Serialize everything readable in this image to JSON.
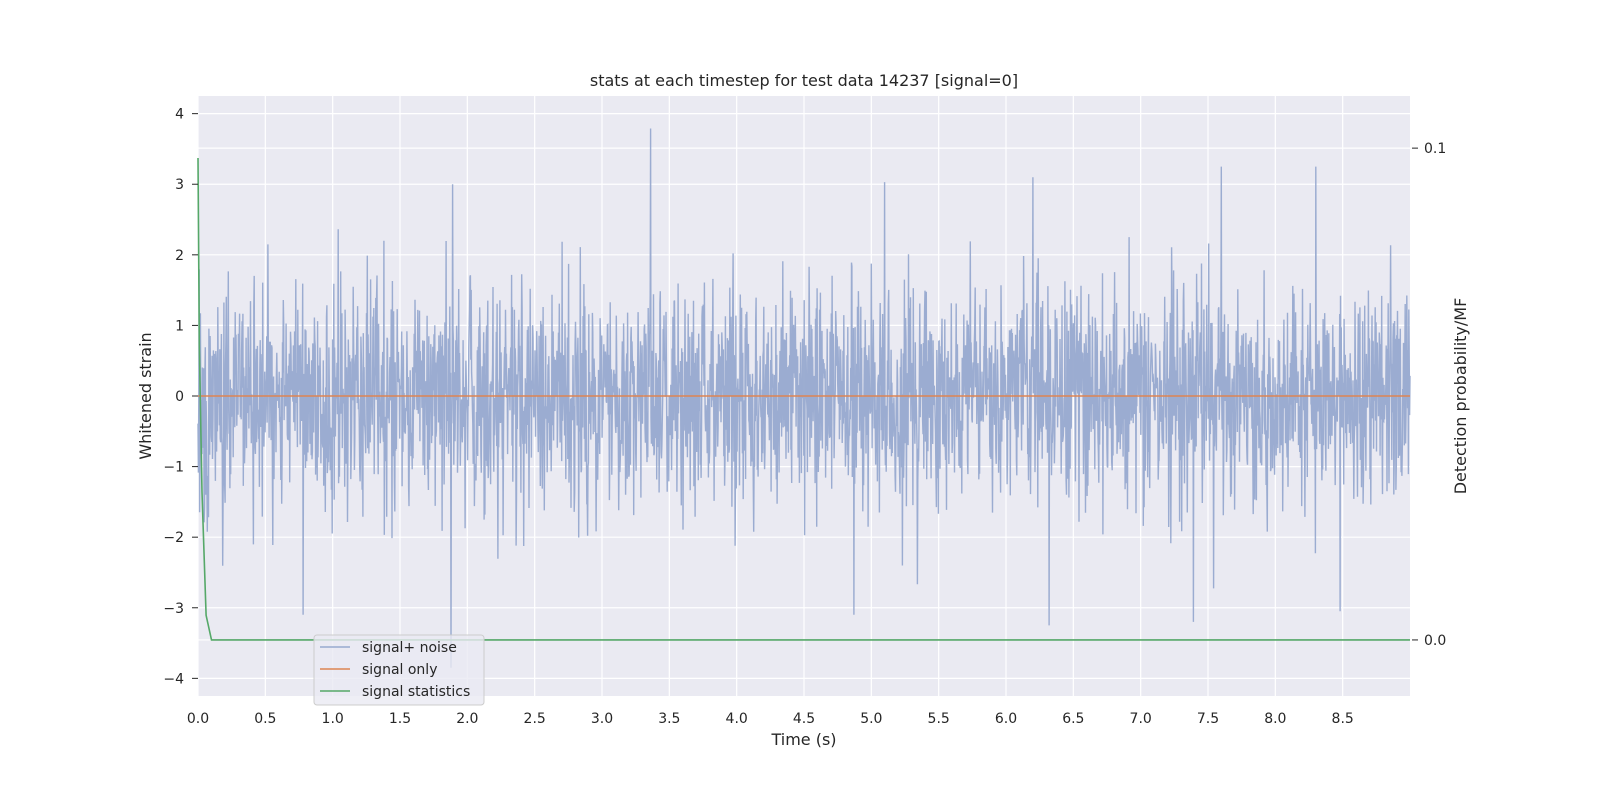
{
  "chart_data": {
    "type": "line",
    "title": "stats at each timestep for test data 14237 [signal=0]",
    "xlabel": "Time (s)",
    "ylabel": "Whitened strain",
    "y2label": "Detection probability/MF",
    "xlim": [
      0.0,
      9.0
    ],
    "ylim": [
      -4.25,
      4.25
    ],
    "y2lim": [
      -0.0114,
      0.1106
    ],
    "xticks": [
      "0.0",
      "0.5",
      "1.0",
      "1.5",
      "2.0",
      "2.5",
      "3.0",
      "3.5",
      "4.0",
      "4.5",
      "5.0",
      "5.5",
      "6.0",
      "6.5",
      "7.0",
      "7.5",
      "8.0",
      "8.5"
    ],
    "yticks": [
      "4",
      "3",
      "2",
      "1",
      "0",
      "−1",
      "−2",
      "−3",
      "−4"
    ],
    "y2ticks": [
      "0.1",
      "0.0"
    ],
    "grid": true,
    "legend_position": "lower-left",
    "noise": {
      "std": 0.75,
      "points": 3000,
      "seed": 14237,
      "spikes": [
        {
          "x": 3.36,
          "y": 3.79
        },
        {
          "x": 1.89,
          "y": 3.0
        },
        {
          "x": 5.1,
          "y": 3.03
        },
        {
          "x": 6.2,
          "y": 3.1
        },
        {
          "x": 7.6,
          "y": 3.25
        },
        {
          "x": 8.3,
          "y": 3.25
        },
        {
          "x": 1.88,
          "y": -3.85
        },
        {
          "x": 6.32,
          "y": -3.25
        },
        {
          "x": 7.39,
          "y": -3.2
        },
        {
          "x": 4.87,
          "y": -3.1
        },
        {
          "x": 0.78,
          "y": -3.1
        },
        {
          "x": 8.48,
          "y": -3.05
        }
      ]
    },
    "series": [
      {
        "name": "signal+ noise",
        "axis": "left",
        "color": "#97a9cf"
      },
      {
        "name": "signal only",
        "axis": "left",
        "color": "#dd8452",
        "x": [
          0.0,
          9.0
        ],
        "y": [
          0.0,
          0.0
        ]
      },
      {
        "name": "signal statistics",
        "axis": "right",
        "color": "#55a868",
        "x": [
          0.0,
          0.01,
          0.03,
          0.06,
          0.1,
          0.5,
          1.0,
          2.0,
          3.0,
          4.0,
          5.0,
          6.0,
          7.0,
          8.0,
          9.0
        ],
        "y": [
          0.098,
          0.06,
          0.03,
          0.005,
          0.0,
          0.0,
          0.0,
          0.0,
          0.0,
          0.0,
          0.0,
          0.0,
          0.0,
          0.0,
          0.0
        ]
      }
    ],
    "colors": {
      "background": "#eaeaf2",
      "grid": "#ffffff"
    }
  }
}
